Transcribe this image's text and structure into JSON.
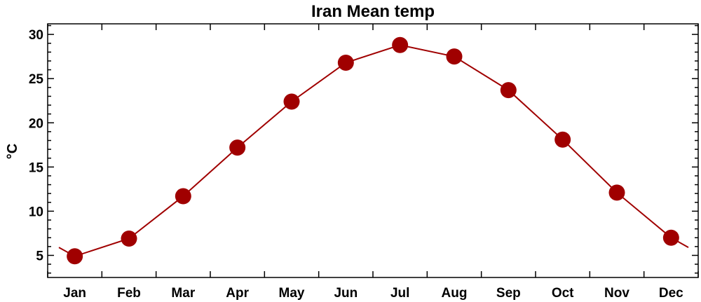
{
  "chart_data": {
    "type": "line",
    "title": "Iran Mean temp",
    "xlabel": "",
    "ylabel": "°C",
    "categories": [
      "Jan",
      "Feb",
      "Mar",
      "Apr",
      "May",
      "Jun",
      "Jul",
      "Aug",
      "Sep",
      "Oct",
      "Nov",
      "Dec"
    ],
    "values": [
      4.9,
      6.9,
      11.7,
      17.2,
      22.4,
      26.8,
      28.8,
      27.5,
      23.7,
      18.1,
      12.1,
      7.0
    ],
    "wrap_values": {
      "before": 5.9,
      "after": 5.9
    },
    "yticks": [
      5,
      10,
      15,
      20,
      25,
      30
    ],
    "ylim": [
      2.5,
      31.2
    ],
    "grid": false,
    "legend": "none",
    "colors": {
      "series": "#a00000",
      "marker": "#a00000"
    }
  }
}
